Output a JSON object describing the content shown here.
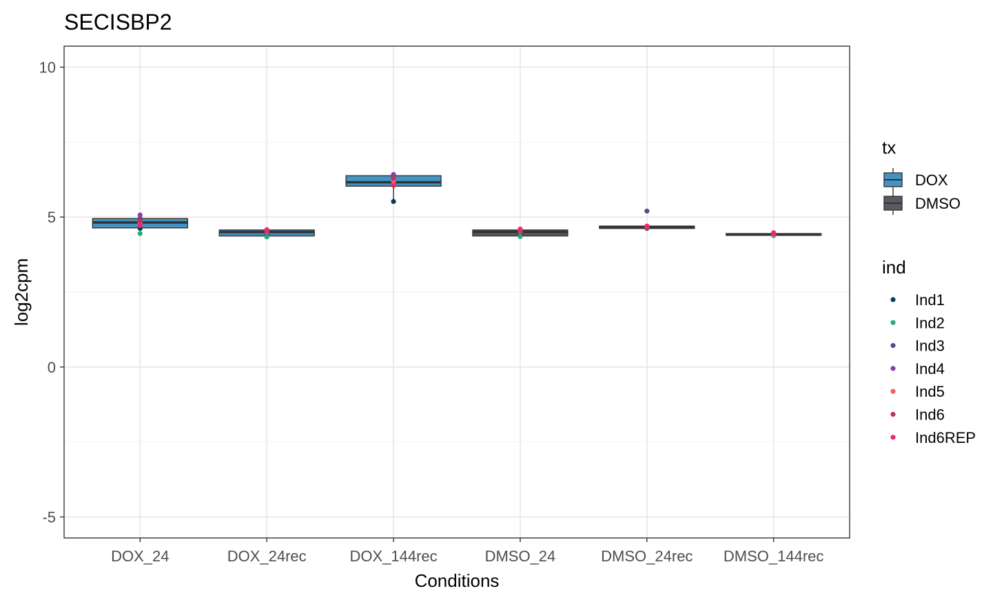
{
  "chart_data": {
    "type": "box",
    "title": "SECISBP2",
    "xlabel": "Conditions",
    "ylabel": "log2cpm",
    "ylim": [
      -5.7,
      10.7
    ],
    "yticks": [
      -5,
      0,
      5,
      10
    ],
    "categories": [
      "DOX_24",
      "DOX_24rec",
      "DOX_144rec",
      "DMSO_24",
      "DMSO_24rec",
      "DMSO_144rec"
    ],
    "grid": true,
    "legend_position": "right",
    "tx_legend": {
      "title": "tx",
      "items": [
        {
          "label": "DOX",
          "color": "#4393C3"
        },
        {
          "label": "DMSO",
          "color": "#5A5A62"
        }
      ]
    },
    "ind_legend": {
      "title": "ind",
      "items": [
        {
          "label": "Ind1",
          "color": "#003F5C"
        },
        {
          "label": "Ind2",
          "color": "#2CA87F"
        },
        {
          "label": "Ind3",
          "color": "#4B4E8F"
        },
        {
          "label": "Ind4",
          "color": "#8B3EA6"
        },
        {
          "label": "Ind5",
          "color": "#F0605D"
        },
        {
          "label": "Ind6",
          "color": "#B8336A"
        },
        {
          "label": "Ind6REP",
          "color": "#F2286B"
        }
      ]
    },
    "boxes": [
      {
        "category": "DOX_24",
        "tx": "DOX",
        "q1": 4.64,
        "median": 4.82,
        "q3": 4.95,
        "whisker_low": 4.55,
        "whisker_high": 5.05
      },
      {
        "category": "DOX_24rec",
        "tx": "DOX",
        "q1": 4.37,
        "median": 4.5,
        "q3": 4.57,
        "whisker_low": 4.33,
        "whisker_high": 4.6
      },
      {
        "category": "DOX_144rec",
        "tx": "DOX",
        "q1": 6.03,
        "median": 6.16,
        "q3": 6.38,
        "whisker_low": 5.52,
        "whisker_high": 6.42
      },
      {
        "category": "DMSO_24",
        "tx": "DMSO",
        "q1": 4.37,
        "median": 4.5,
        "q3": 4.57,
        "whisker_low": 4.33,
        "whisker_high": 4.6
      },
      {
        "category": "DMSO_24rec",
        "tx": "DMSO",
        "q1": 4.62,
        "median": 4.66,
        "q3": 4.7,
        "whisker_low": 4.6,
        "whisker_high": 4.72
      },
      {
        "category": "DMSO_144rec",
        "tx": "DMSO",
        "q1": 4.39,
        "median": 4.42,
        "q3": 4.45,
        "whisker_low": 4.36,
        "whisker_high": 4.48
      }
    ],
    "points": [
      {
        "category": "DOX_24",
        "ind": "Ind1",
        "y": 4.62
      },
      {
        "category": "DOX_24",
        "ind": "Ind2",
        "y": 4.45
      },
      {
        "category": "DOX_24",
        "ind": "Ind3",
        "y": 4.95
      },
      {
        "category": "DOX_24",
        "ind": "Ind4",
        "y": 5.07
      },
      {
        "category": "DOX_24",
        "ind": "Ind5",
        "y": 4.8
      },
      {
        "category": "DOX_24",
        "ind": "Ind6",
        "y": 4.88
      },
      {
        "category": "DOX_24",
        "ind": "Ind6REP",
        "y": 4.72
      },
      {
        "category": "DOX_24rec",
        "ind": "Ind1",
        "y": 4.45
      },
      {
        "category": "DOX_24rec",
        "ind": "Ind2",
        "y": 4.34
      },
      {
        "category": "DOX_24rec",
        "ind": "Ind3",
        "y": 4.52
      },
      {
        "category": "DOX_24rec",
        "ind": "Ind4",
        "y": 4.56
      },
      {
        "category": "DOX_24rec",
        "ind": "Ind5",
        "y": 4.5
      },
      {
        "category": "DOX_24rec",
        "ind": "Ind6",
        "y": 4.54
      },
      {
        "category": "DOX_24rec",
        "ind": "Ind6REP",
        "y": 4.58
      },
      {
        "category": "DOX_144rec",
        "ind": "Ind1",
        "y": 5.52
      },
      {
        "category": "DOX_144rec",
        "ind": "Ind2",
        "y": 6.1
      },
      {
        "category": "DOX_144rec",
        "ind": "Ind3",
        "y": 6.38
      },
      {
        "category": "DOX_144rec",
        "ind": "Ind4",
        "y": 6.42
      },
      {
        "category": "DOX_144rec",
        "ind": "Ind5",
        "y": 6.2
      },
      {
        "category": "DOX_144rec",
        "ind": "Ind6",
        "y": 6.3
      },
      {
        "category": "DOX_144rec",
        "ind": "Ind6REP",
        "y": 6.05
      },
      {
        "category": "DMSO_24",
        "ind": "Ind1",
        "y": 4.45
      },
      {
        "category": "DMSO_24",
        "ind": "Ind2",
        "y": 4.35
      },
      {
        "category": "DMSO_24",
        "ind": "Ind3",
        "y": 4.5
      },
      {
        "category": "DMSO_24",
        "ind": "Ind4",
        "y": 4.57
      },
      {
        "category": "DMSO_24",
        "ind": "Ind5",
        "y": 4.52
      },
      {
        "category": "DMSO_24",
        "ind": "Ind6",
        "y": 4.55
      },
      {
        "category": "DMSO_24",
        "ind": "Ind6REP",
        "y": 4.6
      },
      {
        "category": "DMSO_24rec",
        "ind": "Ind1",
        "y": 4.62
      },
      {
        "category": "DMSO_24rec",
        "ind": "Ind2",
        "y": 4.63
      },
      {
        "category": "DMSO_24rec",
        "ind": "Ind3",
        "y": 5.2
      },
      {
        "category": "DMSO_24rec",
        "ind": "Ind4",
        "y": 4.68
      },
      {
        "category": "DMSO_24rec",
        "ind": "Ind5",
        "y": 4.66
      },
      {
        "category": "DMSO_24rec",
        "ind": "Ind6",
        "y": 4.64
      },
      {
        "category": "DMSO_24rec",
        "ind": "Ind6REP",
        "y": 4.7
      },
      {
        "category": "DMSO_144rec",
        "ind": "Ind1",
        "y": 4.4
      },
      {
        "category": "DMSO_144rec",
        "ind": "Ind2",
        "y": 4.38
      },
      {
        "category": "DMSO_144rec",
        "ind": "Ind3",
        "y": 4.43
      },
      {
        "category": "DMSO_144rec",
        "ind": "Ind4",
        "y": 4.47
      },
      {
        "category": "DMSO_144rec",
        "ind": "Ind5",
        "y": 4.42
      },
      {
        "category": "DMSO_144rec",
        "ind": "Ind6",
        "y": 4.45
      },
      {
        "category": "DMSO_144rec",
        "ind": "Ind6REP",
        "y": 4.48
      }
    ]
  }
}
